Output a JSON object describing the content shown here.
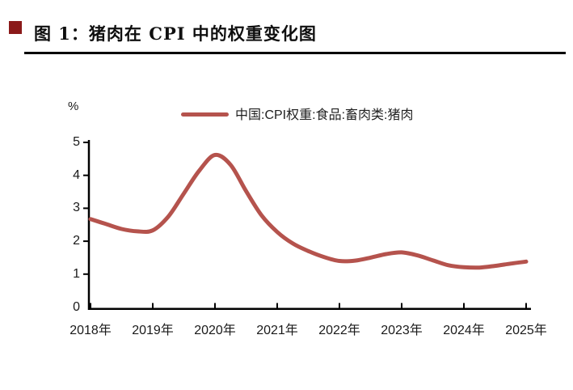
{
  "header": {
    "title": "图 1：猪肉在 CPI 中的权重变化图"
  },
  "colors": {
    "line": "#B5534D",
    "axis": "#000000",
    "title_marker": "#8B1A1A",
    "text": "#1a1a1a"
  },
  "chart_data": {
    "type": "line",
    "title": "图 1：猪肉在 CPI 中的权重变化图",
    "ylabel": "%",
    "xlabel": "",
    "grid": false,
    "legend_position": "top-center",
    "xlim": [
      2018,
      2025
    ],
    "ylim": [
      0,
      5
    ],
    "y_tick_labels": [
      "0",
      "1",
      "2",
      "3",
      "4",
      "5"
    ],
    "y_tick_values": [
      0,
      1,
      2,
      3,
      4,
      5
    ],
    "x_tick_labels": [
      "2018年",
      "2019年",
      "2020年",
      "2021年",
      "2022年",
      "2023年",
      "2024年",
      "2025年"
    ],
    "x_tick_values": [
      2018,
      2019,
      2020,
      2021,
      2022,
      2023,
      2024,
      2025
    ],
    "series": [
      {
        "name": "中国:CPI权重:食品:畜肉类:猪肉",
        "color": "#B5534D",
        "x": [
          2018,
          2018.25,
          2018.5,
          2018.75,
          2019,
          2019.25,
          2019.5,
          2019.75,
          2020,
          2020.25,
          2020.5,
          2020.75,
          2021,
          2021.25,
          2021.5,
          2021.75,
          2022,
          2022.25,
          2022.5,
          2022.75,
          2023,
          2023.25,
          2023.5,
          2023.75,
          2024,
          2024.25,
          2024.5,
          2024.75,
          2025
        ],
        "values": [
          2.67,
          2.52,
          2.37,
          2.3,
          2.33,
          2.75,
          3.45,
          4.15,
          4.62,
          4.32,
          3.52,
          2.78,
          2.28,
          1.93,
          1.7,
          1.52,
          1.4,
          1.41,
          1.5,
          1.61,
          1.66,
          1.57,
          1.42,
          1.27,
          1.21,
          1.2,
          1.25,
          1.32,
          1.38
        ]
      }
    ]
  }
}
